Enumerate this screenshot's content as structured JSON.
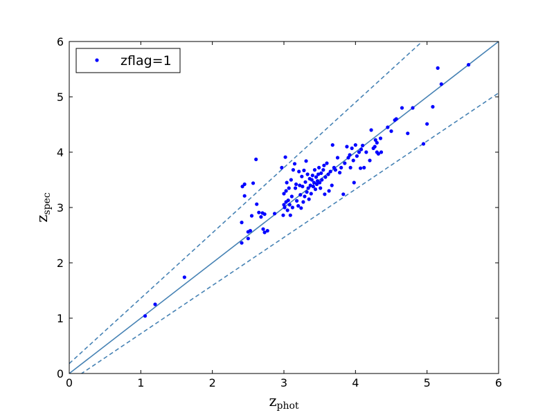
{
  "chart_data": {
    "type": "scatter",
    "title": "",
    "xlabel_main": "z",
    "xlabel_sub": "phot",
    "ylabel_main": "z",
    "ylabel_sub": "spec",
    "xlim": [
      0,
      6
    ],
    "ylim": [
      0,
      6
    ],
    "x_ticks": [
      0,
      1,
      2,
      3,
      4,
      5,
      6
    ],
    "y_ticks": [
      0,
      1,
      2,
      3,
      4,
      5,
      6
    ],
    "x_tick_labels": [
      "0",
      "1",
      "2",
      "3",
      "4",
      "5",
      "6"
    ],
    "y_tick_labels": [
      "0",
      "1",
      "2",
      "3",
      "4",
      "5",
      "6"
    ],
    "grid": false,
    "legend": {
      "placement": "top-left",
      "entries": [
        "zflag=1"
      ]
    },
    "colors": {
      "points": "#0000ff",
      "lines": "#4682b4"
    },
    "reference_lines": [
      {
        "style": "solid",
        "points": [
          [
            0,
            0
          ],
          [
            6,
            6
          ]
        ]
      },
      {
        "style": "dashed",
        "points": [
          [
            0,
            0.18
          ],
          [
            6,
            7.26
          ]
        ]
      },
      {
        "style": "dashed",
        "points": [
          [
            0,
            -0.15
          ],
          [
            6,
            5.07
          ]
        ]
      }
    ],
    "series": [
      {
        "name": "zflag=1",
        "points": [
          [
            1.06,
            1.04
          ],
          [
            1.2,
            1.25
          ],
          [
            1.61,
            1.74
          ],
          [
            2.41,
            2.36
          ],
          [
            2.41,
            2.73
          ],
          [
            2.42,
            3.38
          ],
          [
            2.45,
            3.42
          ],
          [
            2.45,
            3.21
          ],
          [
            2.5,
            2.44
          ],
          [
            2.5,
            2.56
          ],
          [
            2.53,
            2.58
          ],
          [
            2.55,
            2.85
          ],
          [
            2.57,
            3.44
          ],
          [
            2.61,
            3.87
          ],
          [
            2.62,
            3.06
          ],
          [
            2.65,
            2.91
          ],
          [
            2.68,
            2.83
          ],
          [
            2.7,
            2.9
          ],
          [
            2.71,
            2.61
          ],
          [
            2.73,
            2.55
          ],
          [
            2.73,
            2.88
          ],
          [
            2.77,
            2.58
          ],
          [
            2.87,
            2.89
          ],
          [
            2.97,
            3.72
          ],
          [
            2.99,
            2.86
          ],
          [
            3.0,
            3.05
          ],
          [
            3.0,
            3.25
          ],
          [
            3.01,
            3.0
          ],
          [
            3.02,
            3.91
          ],
          [
            3.03,
            3.1
          ],
          [
            3.03,
            3.3
          ],
          [
            3.04,
            3.45
          ],
          [
            3.05,
            2.95
          ],
          [
            3.06,
            3.13
          ],
          [
            3.07,
            3.35
          ],
          [
            3.08,
            3.05
          ],
          [
            3.09,
            2.86
          ],
          [
            3.1,
            3.5
          ],
          [
            3.11,
            3.2
          ],
          [
            3.12,
            3.0
          ],
          [
            3.13,
            3.68
          ],
          [
            3.15,
            3.79
          ],
          [
            3.16,
            3.35
          ],
          [
            3.17,
            3.42
          ],
          [
            3.18,
            3.12
          ],
          [
            3.2,
            3.03
          ],
          [
            3.21,
            3.65
          ],
          [
            3.22,
            3.4
          ],
          [
            3.23,
            3.23
          ],
          [
            3.24,
            2.99
          ],
          [
            3.25,
            3.56
          ],
          [
            3.26,
            3.38
          ],
          [
            3.27,
            3.1
          ],
          [
            3.28,
            3.67
          ],
          [
            3.29,
            3.2
          ],
          [
            3.3,
            3.46
          ],
          [
            3.31,
            3.84
          ],
          [
            3.32,
            3.28
          ],
          [
            3.33,
            3.6
          ],
          [
            3.34,
            3.35
          ],
          [
            3.35,
            3.15
          ],
          [
            3.36,
            3.52
          ],
          [
            3.37,
            3.4
          ],
          [
            3.38,
            3.25
          ],
          [
            3.39,
            3.5
          ],
          [
            3.4,
            3.58
          ],
          [
            3.41,
            3.38
          ],
          [
            3.42,
            3.45
          ],
          [
            3.43,
            3.68
          ],
          [
            3.44,
            3.33
          ],
          [
            3.45,
            3.55
          ],
          [
            3.46,
            3.42
          ],
          [
            3.47,
            3.48
          ],
          [
            3.48,
            3.6
          ],
          [
            3.49,
            3.72
          ],
          [
            3.5,
            3.45
          ],
          [
            3.51,
            3.35
          ],
          [
            3.52,
            3.62
          ],
          [
            3.53,
            3.5
          ],
          [
            3.55,
            3.68
          ],
          [
            3.56,
            3.76
          ],
          [
            3.57,
            3.24
          ],
          [
            3.58,
            3.55
          ],
          [
            3.6,
            3.8
          ],
          [
            3.62,
            3.6
          ],
          [
            3.63,
            3.3
          ],
          [
            3.65,
            3.65
          ],
          [
            3.67,
            3.4
          ],
          [
            3.68,
            4.13
          ],
          [
            3.7,
            3.72
          ],
          [
            3.72,
            3.68
          ],
          [
            3.75,
            3.9
          ],
          [
            3.78,
            3.63
          ],
          [
            3.8,
            3.72
          ],
          [
            3.83,
            3.24
          ],
          [
            3.85,
            3.8
          ],
          [
            3.88,
            4.1
          ],
          [
            3.9,
            3.9
          ],
          [
            3.92,
            3.95
          ],
          [
            3.93,
            3.72
          ],
          [
            3.95,
            4.07
          ],
          [
            3.97,
            3.85
          ],
          [
            3.98,
            3.45
          ],
          [
            4.0,
            4.13
          ],
          [
            4.02,
            3.93
          ],
          [
            4.05,
            4.0
          ],
          [
            4.07,
            3.71
          ],
          [
            4.08,
            4.05
          ],
          [
            4.1,
            4.12
          ],
          [
            4.12,
            3.72
          ],
          [
            4.15,
            4.0
          ],
          [
            4.2,
            3.85
          ],
          [
            4.22,
            4.4
          ],
          [
            4.25,
            4.07
          ],
          [
            4.27,
            4.1
          ],
          [
            4.28,
            4.22
          ],
          [
            4.3,
            4.17
          ],
          [
            4.3,
            4.0
          ],
          [
            4.32,
            3.97
          ],
          [
            4.35,
            4.25
          ],
          [
            4.36,
            4.0
          ],
          [
            4.45,
            4.45
          ],
          [
            4.5,
            4.38
          ],
          [
            4.55,
            4.58
          ],
          [
            4.57,
            4.6
          ],
          [
            4.65,
            4.8
          ],
          [
            4.73,
            4.34
          ],
          [
            4.8,
            4.8
          ],
          [
            4.95,
            4.15
          ],
          [
            5.0,
            4.51
          ],
          [
            5.08,
            4.82
          ],
          [
            5.15,
            5.52
          ],
          [
            5.2,
            5.23
          ],
          [
            5.58,
            5.58
          ]
        ]
      }
    ]
  }
}
